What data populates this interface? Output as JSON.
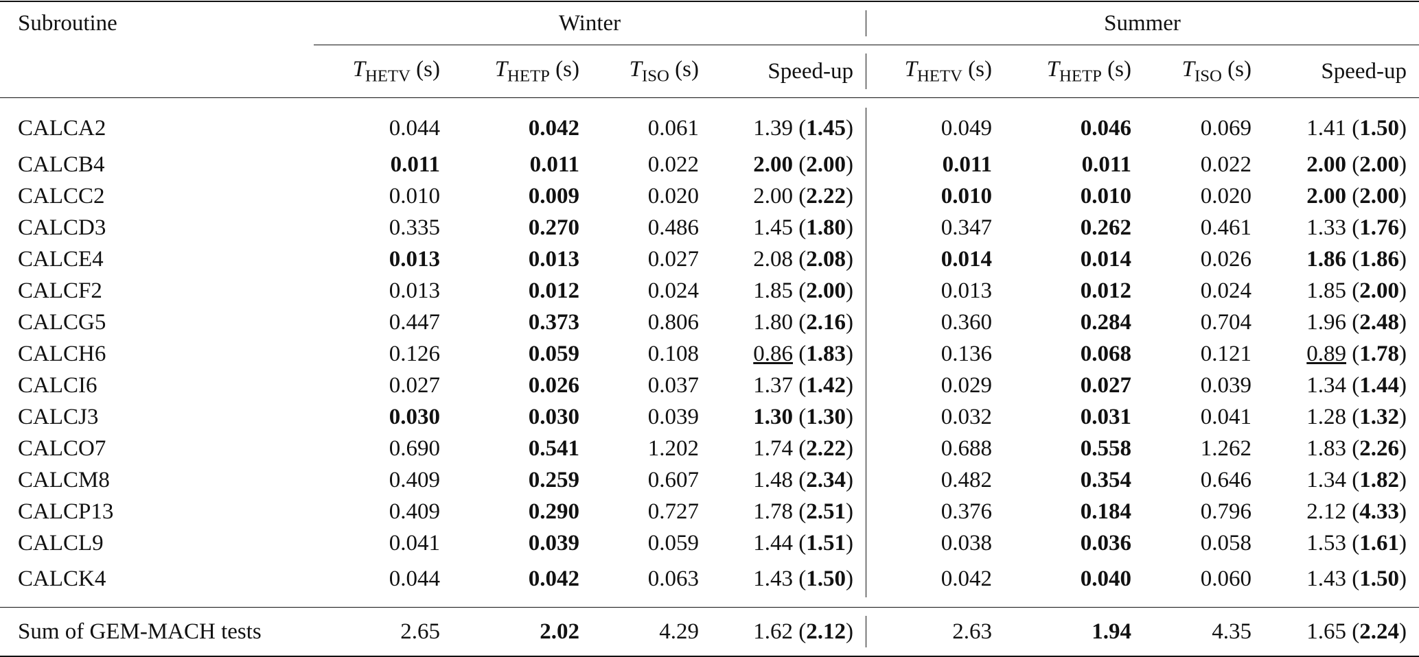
{
  "table": {
    "header": {
      "subroutine": "Subroutine",
      "groups": [
        {
          "name": "Winter",
          "columns": [
            [
              {
                "text": "T",
                "italic": true
              },
              {
                "text": "HETV",
                "sub": true
              },
              " (s)"
            ],
            [
              {
                "text": "T",
                "italic": true
              },
              {
                "text": "HETP",
                "sub": true
              },
              " (s)"
            ],
            [
              {
                "text": "T",
                "italic": true
              },
              {
                "text": "ISO",
                "sub": true
              },
              " (s)"
            ],
            "Speed-up"
          ]
        },
        {
          "name": "Summer",
          "columns": [
            [
              {
                "text": "T",
                "italic": true
              },
              {
                "text": "HETV",
                "sub": true
              },
              " (s)"
            ],
            [
              {
                "text": "T",
                "italic": true
              },
              {
                "text": "HETP",
                "sub": true
              },
              " (s)"
            ],
            [
              {
                "text": "T",
                "italic": true
              },
              {
                "text": "ISO",
                "sub": true
              },
              " (s)"
            ],
            "Speed-up"
          ]
        }
      ]
    },
    "rows": [
      {
        "name": "CALCA2",
        "cells": [
          "0.044",
          {
            "text": "0.042",
            "bold": true
          },
          "0.061",
          [
            "1.39 (",
            {
              "text": "1.45",
              "bold": true
            },
            ")"
          ],
          "0.049",
          {
            "text": "0.046",
            "bold": true
          },
          "0.069",
          [
            "1.41 (",
            {
              "text": "1.50",
              "bold": true
            },
            ")"
          ]
        ]
      },
      {
        "name": "CALCB4",
        "cells": [
          {
            "text": "0.011",
            "bold": true
          },
          {
            "text": "0.011",
            "bold": true
          },
          "0.022",
          [
            {
              "text": "2.00",
              "bold": true
            },
            " (",
            {
              "text": "2.00",
              "bold": true
            },
            ")"
          ],
          {
            "text": "0.011",
            "bold": true
          },
          {
            "text": "0.011",
            "bold": true
          },
          "0.022",
          [
            {
              "text": "2.00",
              "bold": true
            },
            " (",
            {
              "text": "2.00",
              "bold": true
            },
            ")"
          ]
        ]
      },
      {
        "name": "CALCC2",
        "cells": [
          "0.010",
          {
            "text": "0.009",
            "bold": true
          },
          "0.020",
          [
            "2.00 (",
            {
              "text": "2.22",
              "bold": true
            },
            ")"
          ],
          {
            "text": "0.010",
            "bold": true
          },
          {
            "text": "0.010",
            "bold": true
          },
          "0.020",
          [
            {
              "text": "2.00",
              "bold": true
            },
            " (",
            {
              "text": "2.00",
              "bold": true
            },
            ")"
          ]
        ]
      },
      {
        "name": "CALCD3",
        "cells": [
          "0.335",
          {
            "text": "0.270",
            "bold": true
          },
          "0.486",
          [
            "1.45 (",
            {
              "text": "1.80",
              "bold": true
            },
            ")"
          ],
          "0.347",
          {
            "text": "0.262",
            "bold": true
          },
          "0.461",
          [
            "1.33 (",
            {
              "text": "1.76",
              "bold": true
            },
            ")"
          ]
        ]
      },
      {
        "name": "CALCE4",
        "cells": [
          {
            "text": "0.013",
            "bold": true
          },
          {
            "text": "0.013",
            "bold": true
          },
          "0.027",
          [
            "2.08 (",
            {
              "text": "2.08",
              "bold": true
            },
            ")"
          ],
          {
            "text": "0.014",
            "bold": true
          },
          {
            "text": "0.014",
            "bold": true
          },
          "0.026",
          [
            {
              "text": "1.86",
              "bold": true
            },
            " (",
            {
              "text": "1.86",
              "bold": true
            },
            ")"
          ]
        ]
      },
      {
        "name": "CALCF2",
        "cells": [
          "0.013",
          {
            "text": "0.012",
            "bold": true
          },
          "0.024",
          [
            "1.85 (",
            {
              "text": "2.00",
              "bold": true
            },
            ")"
          ],
          "0.013",
          {
            "text": "0.012",
            "bold": true
          },
          "0.024",
          [
            "1.85 (",
            {
              "text": "2.00",
              "bold": true
            },
            ")"
          ]
        ]
      },
      {
        "name": "CALCG5",
        "cells": [
          "0.447",
          {
            "text": "0.373",
            "bold": true
          },
          "0.806",
          [
            "1.80 (",
            {
              "text": "2.16",
              "bold": true
            },
            ")"
          ],
          "0.360",
          {
            "text": "0.284",
            "bold": true
          },
          "0.704",
          [
            "1.96 (",
            {
              "text": "2.48",
              "bold": true
            },
            ")"
          ]
        ]
      },
      {
        "name": "CALCH6",
        "cells": [
          "0.126",
          {
            "text": "0.059",
            "bold": true
          },
          "0.108",
          [
            {
              "text": "0.86",
              "underline": true
            },
            " (",
            {
              "text": "1.83",
              "bold": true
            },
            ")"
          ],
          "0.136",
          {
            "text": "0.068",
            "bold": true
          },
          "0.121",
          [
            {
              "text": "0.89",
              "underline": true
            },
            " (",
            {
              "text": "1.78",
              "bold": true
            },
            ")"
          ]
        ]
      },
      {
        "name": "CALCI6",
        "cells": [
          "0.027",
          {
            "text": "0.026",
            "bold": true
          },
          "0.037",
          [
            "1.37 (",
            {
              "text": "1.42",
              "bold": true
            },
            ")"
          ],
          "0.029",
          {
            "text": "0.027",
            "bold": true
          },
          "0.039",
          [
            "1.34 (",
            {
              "text": "1.44",
              "bold": true
            },
            ")"
          ]
        ]
      },
      {
        "name": "CALCJ3",
        "cells": [
          {
            "text": "0.030",
            "bold": true
          },
          {
            "text": "0.030",
            "bold": true
          },
          "0.039",
          [
            {
              "text": "1.30",
              "bold": true
            },
            " (",
            {
              "text": "1.30",
              "bold": true
            },
            ")"
          ],
          "0.032",
          {
            "text": "0.031",
            "bold": true
          },
          "0.041",
          [
            "1.28 (",
            {
              "text": "1.32",
              "bold": true
            },
            ")"
          ]
        ]
      },
      {
        "name": "CALCO7",
        "cells": [
          "0.690",
          {
            "text": "0.541",
            "bold": true
          },
          "1.202",
          [
            "1.74 (",
            {
              "text": "2.22",
              "bold": true
            },
            ")"
          ],
          "0.688",
          {
            "text": "0.558",
            "bold": true
          },
          "1.262",
          [
            "1.83 (",
            {
              "text": "2.26",
              "bold": true
            },
            ")"
          ]
        ]
      },
      {
        "name": "CALCM8",
        "cells": [
          "0.409",
          {
            "text": "0.259",
            "bold": true
          },
          "0.607",
          [
            "1.48 (",
            {
              "text": "2.34",
              "bold": true
            },
            ")"
          ],
          "0.482",
          {
            "text": "0.354",
            "bold": true
          },
          "0.646",
          [
            "1.34 (",
            {
              "text": "1.82",
              "bold": true
            },
            ")"
          ]
        ]
      },
      {
        "name": "CALCP13",
        "cells": [
          "0.409",
          {
            "text": "0.290",
            "bold": true
          },
          "0.727",
          [
            "1.78 (",
            {
              "text": "2.51",
              "bold": true
            },
            ")"
          ],
          "0.376",
          {
            "text": "0.184",
            "bold": true
          },
          "0.796",
          [
            "2.12 (",
            {
              "text": "4.33",
              "bold": true
            },
            ")"
          ]
        ]
      },
      {
        "name": "CALCL9",
        "cells": [
          "0.041",
          {
            "text": "0.039",
            "bold": true
          },
          "0.059",
          [
            "1.44 (",
            {
              "text": "1.51",
              "bold": true
            },
            ")"
          ],
          "0.038",
          {
            "text": "0.036",
            "bold": true
          },
          "0.058",
          [
            "1.53 (",
            {
              "text": "1.61",
              "bold": true
            },
            ")"
          ]
        ]
      },
      {
        "name": "CALCK4",
        "cells": [
          "0.044",
          {
            "text": "0.042",
            "bold": true
          },
          "0.063",
          [
            "1.43 (",
            {
              "text": "1.50",
              "bold": true
            },
            ")"
          ],
          "0.042",
          {
            "text": "0.040",
            "bold": true
          },
          "0.060",
          [
            "1.43 (",
            {
              "text": "1.50",
              "bold": true
            },
            ")"
          ]
        ]
      }
    ],
    "total": {
      "name": "Sum of GEM-MACH tests",
      "cells": [
        "2.65",
        {
          "text": "2.02",
          "bold": true
        },
        "4.29",
        [
          "1.62 (",
          {
            "text": "2.12",
            "bold": true
          },
          ")"
        ],
        "2.63",
        {
          "text": "1.94",
          "bold": true
        },
        "4.35",
        [
          "1.65 (",
          {
            "text": "2.24",
            "bold": true
          },
          ")"
        ]
      ]
    }
  }
}
